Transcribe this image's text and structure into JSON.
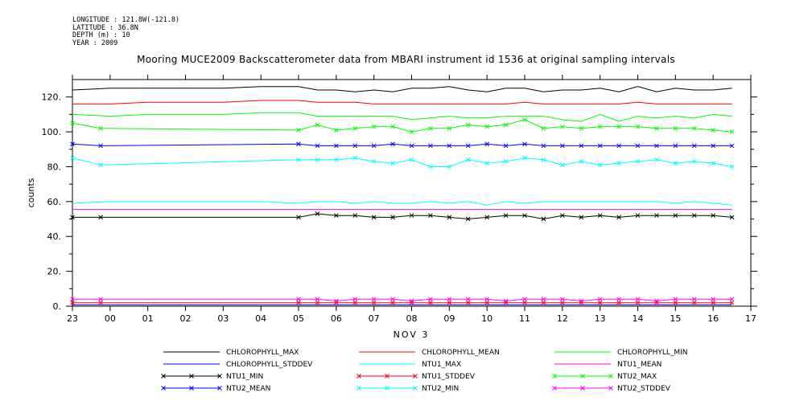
{
  "header": {
    "longitude": "LONGITUDE : 121.8W(-121.8)",
    "latitude": "LATITUDE : 36.8N",
    "depth": "DEPTH (m) : 10",
    "year": "YEAR : 2009",
    "title": "Mooring MUCE2009 Backscatterometer data from MBARI instrument id 1536 at original sampling intervals"
  },
  "chart_data": {
    "type": "line",
    "title": "Mooring MUCE2009 Backscatterometer data from MBARI instrument id 1536 at original sampling intervals",
    "xlabel": "NOV 3",
    "ylabel": "counts",
    "xlim": [
      23,
      17
    ],
    "ylim": [
      0,
      130
    ],
    "x_tick_labels": [
      "23",
      "00",
      "01",
      "02",
      "03",
      "04",
      "05",
      "06",
      "07",
      "08",
      "09",
      "10",
      "11",
      "12",
      "13",
      "14",
      "15",
      "16",
      "17"
    ],
    "y_tick_labels": [
      "0.",
      "20.",
      "40.",
      "60.",
      "80.",
      "100.",
      "120."
    ],
    "y_ticks": [
      0,
      20,
      40,
      60,
      80,
      100,
      120
    ],
    "grid": false,
    "legend_position": "bottom",
    "series": [
      {
        "name": "CHLOROPHYLL_MAX",
        "color": "#000000",
        "marker": "none",
        "x": [
          23.0,
          0.0,
          1.0,
          2.0,
          3.0,
          4.0,
          5.0,
          5.5,
          6.0,
          6.5,
          7.0,
          7.5,
          8.0,
          8.5,
          9.0,
          9.5,
          10.0,
          10.5,
          11.0,
          11.5,
          12.0,
          12.5,
          13.0,
          13.5,
          14.0,
          14.5,
          15.0,
          15.5,
          16.0,
          16.5
        ],
        "values": [
          124,
          125,
          125,
          125,
          125,
          126,
          126,
          124,
          124,
          123,
          124,
          123,
          125,
          125,
          126,
          124,
          123,
          125,
          125,
          123,
          124,
          124,
          125,
          123,
          126,
          123,
          125,
          124,
          124,
          125
        ]
      },
      {
        "name": "CHLOROPHYLL_MEAN",
        "color": "#ff0000",
        "marker": "none",
        "x": [
          23.0,
          0.0,
          1.0,
          2.0,
          3.0,
          4.0,
          5.0,
          5.5,
          6.0,
          6.5,
          7.0,
          7.5,
          8.0,
          8.5,
          9.0,
          9.5,
          10.0,
          10.5,
          11.0,
          11.5,
          12.0,
          12.5,
          13.0,
          13.5,
          14.0,
          14.5,
          15.0,
          15.5,
          16.0,
          16.5
        ],
        "values": [
          116,
          116,
          117,
          117,
          117,
          118,
          118,
          117,
          117,
          117,
          116,
          116,
          116,
          116,
          116,
          116,
          116,
          116,
          117,
          116,
          116,
          116,
          116,
          116,
          117,
          116,
          116,
          116,
          116,
          116
        ]
      },
      {
        "name": "CHLOROPHYLL_MIN",
        "color": "#00ff00",
        "marker": "none",
        "x": [
          23.0,
          0.0,
          1.0,
          2.0,
          3.0,
          4.0,
          5.0,
          5.5,
          6.0,
          6.5,
          7.0,
          7.5,
          8.0,
          8.5,
          9.0,
          9.5,
          10.0,
          10.5,
          11.0,
          11.5,
          12.0,
          12.5,
          13.0,
          13.5,
          14.0,
          14.5,
          15.0,
          15.5,
          16.0,
          16.5
        ],
        "values": [
          110,
          109,
          110,
          110,
          110,
          111,
          111,
          109,
          109,
          109,
          109,
          109,
          107,
          108,
          109,
          108,
          108,
          109,
          109,
          109,
          107,
          106,
          110,
          106,
          109,
          108,
          109,
          108,
          110,
          109
        ]
      },
      {
        "name": "CHLOROPHYLL_STDDEV",
        "color": "#0000ff",
        "marker": "none",
        "x": [
          23.0,
          16.5
        ],
        "values": [
          0.8,
          0.8
        ]
      },
      {
        "name": "NTU1_MAX",
        "color": "#00ffff",
        "marker": "none",
        "x": [
          23.0,
          0.0,
          1.0,
          2.0,
          3.0,
          4.0,
          5.0,
          5.5,
          6.0,
          6.5,
          7.0,
          7.5,
          8.0,
          8.5,
          9.0,
          9.5,
          10.0,
          10.5,
          11.0,
          11.5,
          12.0,
          12.5,
          13.0,
          13.5,
          14.0,
          14.5,
          15.0,
          15.5,
          16.0,
          16.5
        ],
        "values": [
          59,
          60,
          60,
          60,
          60,
          60,
          59,
          60,
          60,
          59,
          60,
          59,
          59,
          60,
          59,
          60,
          58,
          60,
          59,
          60,
          60,
          60,
          60,
          60,
          60,
          60,
          59,
          60,
          59,
          58
        ]
      },
      {
        "name": "NTU1_MEAN",
        "color": "#ff00ff",
        "marker": "none",
        "x": [
          23.0,
          16.5
        ],
        "values": [
          55.5,
          55.5
        ]
      },
      {
        "name": "NTU1_MIN",
        "color": "#000000",
        "marker": "x",
        "x": [
          23.0,
          23.75,
          5.0,
          5.5,
          6.0,
          6.5,
          7.0,
          7.5,
          8.0,
          8.5,
          9.0,
          9.5,
          10.0,
          10.5,
          11.0,
          11.5,
          12.0,
          12.5,
          13.0,
          13.5,
          14.0,
          14.5,
          15.0,
          15.5,
          16.0,
          16.5
        ],
        "values": [
          51,
          51,
          51,
          53,
          52,
          52,
          51,
          51,
          52,
          52,
          51,
          50,
          51,
          52,
          52,
          50,
          52,
          51,
          52,
          51,
          52,
          52,
          52,
          52,
          52,
          51
        ]
      },
      {
        "name": "NTU1_STDDEV",
        "color": "#ff0000",
        "marker": "x",
        "x": [
          23.0,
          23.75,
          5.0,
          5.5,
          6.0,
          6.5,
          7.0,
          7.5,
          8.0,
          8.5,
          9.0,
          9.5,
          10.0,
          10.5,
          11.0,
          11.5,
          12.0,
          12.5,
          13.0,
          13.5,
          14.0,
          14.5,
          15.0,
          15.5,
          16.0,
          16.5
        ],
        "values": [
          2,
          2,
          2,
          2,
          2,
          2,
          2,
          2,
          2,
          2,
          2,
          2,
          2,
          2,
          2,
          2,
          2,
          2,
          2,
          2,
          2,
          2,
          2,
          2,
          2,
          2
        ]
      },
      {
        "name": "NTU2_MAX",
        "color": "#00ff00",
        "marker": "x",
        "x": [
          23.0,
          23.75,
          5.0,
          5.5,
          6.0,
          6.5,
          7.0,
          7.5,
          8.0,
          8.5,
          9.0,
          9.5,
          10.0,
          10.5,
          11.0,
          11.5,
          12.0,
          12.5,
          13.0,
          13.5,
          14.0,
          14.5,
          15.0,
          15.5,
          16.0,
          16.5
        ],
        "values": [
          105,
          102,
          101,
          104,
          101,
          102,
          103,
          103,
          100,
          102,
          102,
          104,
          103,
          104,
          107,
          102,
          103,
          102,
          103,
          103,
          103,
          102,
          102,
          102,
          101,
          100
        ]
      },
      {
        "name": "NTU2_MEAN",
        "color": "#0000ff",
        "marker": "x",
        "x": [
          23.0,
          23.75,
          5.0,
          5.5,
          6.0,
          6.5,
          7.0,
          7.5,
          8.0,
          8.5,
          9.0,
          9.5,
          10.0,
          10.5,
          11.0,
          11.5,
          12.0,
          12.5,
          13.0,
          13.5,
          14.0,
          14.5,
          15.0,
          15.5,
          16.0,
          16.5
        ],
        "values": [
          93,
          92,
          93,
          92,
          92,
          92,
          92,
          93,
          92,
          92,
          92,
          92,
          93,
          92,
          93,
          92,
          92,
          92,
          92,
          92,
          92,
          92,
          92,
          92,
          92,
          92
        ]
      },
      {
        "name": "NTU2_MIN",
        "color": "#00ffff",
        "marker": "x",
        "x": [
          23.0,
          23.75,
          5.0,
          5.5,
          6.0,
          6.5,
          7.0,
          7.5,
          8.0,
          8.5,
          9.0,
          9.5,
          10.0,
          10.5,
          11.0,
          11.5,
          12.0,
          12.5,
          13.0,
          13.5,
          14.0,
          14.5,
          15.0,
          15.5,
          16.0,
          16.5
        ],
        "values": [
          85,
          81,
          84,
          84,
          84,
          85,
          83,
          82,
          84,
          80,
          80,
          84,
          82,
          83,
          85,
          84,
          81,
          83,
          81,
          82,
          83,
          84,
          82,
          83,
          82,
          80
        ]
      },
      {
        "name": "NTU2_STDDEV",
        "color": "#ff00ff",
        "marker": "x",
        "x": [
          23.0,
          23.75,
          5.0,
          5.5,
          6.0,
          6.5,
          7.0,
          7.5,
          8.0,
          8.5,
          9.0,
          9.5,
          10.0,
          10.5,
          11.0,
          11.5,
          12.0,
          12.5,
          13.0,
          13.5,
          14.0,
          14.5,
          15.0,
          15.5,
          16.0,
          16.5
        ],
        "values": [
          4,
          4,
          4,
          4,
          3,
          4,
          4,
          4,
          3,
          4,
          4,
          4,
          4,
          3,
          4,
          4,
          4,
          3,
          4,
          4,
          4,
          3,
          4,
          4,
          4,
          4
        ]
      }
    ]
  }
}
